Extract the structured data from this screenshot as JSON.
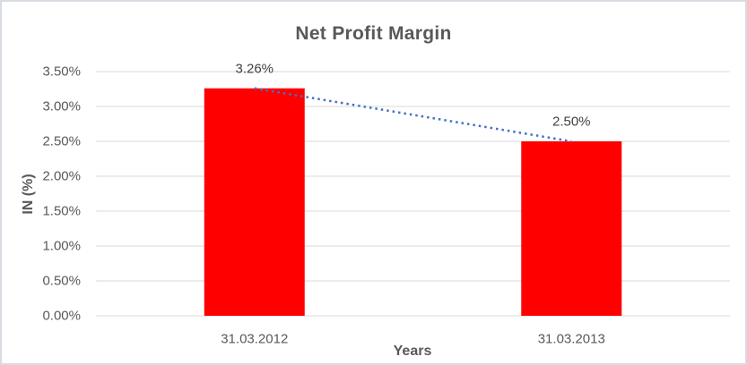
{
  "chart_data": {
    "type": "bar",
    "title": "Net Profit Margin",
    "xlabel": "Years",
    "ylabel": "IN (%)",
    "categories": [
      "31.03.2012",
      "31.03.2013"
    ],
    "series": [
      {
        "name": "Net Profit Margin",
        "values": [
          3.26,
          2.5
        ]
      }
    ],
    "data_labels": [
      "3.26%",
      "2.50%"
    ],
    "y_ticks": [
      "0.00%",
      "0.50%",
      "1.00%",
      "1.50%",
      "2.00%",
      "2.50%",
      "3.00%",
      "3.50%"
    ],
    "y_tick_values": [
      0,
      0.5,
      1.0,
      1.5,
      2.0,
      2.5,
      3.0,
      3.5
    ],
    "ylim": [
      0,
      3.5
    ],
    "grid": "horizontal",
    "legend": "none",
    "trendline": {
      "type": "linear",
      "style": "dotted",
      "from": 3.26,
      "to": 2.5
    },
    "colors": {
      "bar": "#ff0000",
      "trendline": "#4472c4",
      "gridline": "#d9d9d9",
      "axis_text": "#595959",
      "data_label_text": "#404040",
      "title_text": "#595959",
      "chart_border": "#d7dce2"
    }
  }
}
